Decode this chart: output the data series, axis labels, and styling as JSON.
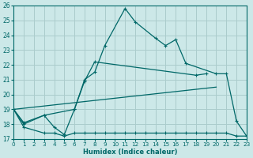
{
  "xlabel": "Humidex (Indice chaleur)",
  "background_color": "#cce8e8",
  "grid_color": "#aacccc",
  "line_color": "#006868",
  "xlim": [
    0,
    23
  ],
  "ylim": [
    17,
    26
  ],
  "xticks": [
    0,
    1,
    2,
    3,
    4,
    5,
    6,
    7,
    8,
    9,
    10,
    11,
    12,
    13,
    14,
    15,
    16,
    17,
    18,
    19,
    20,
    21,
    22,
    23
  ],
  "yticks": [
    17,
    18,
    19,
    20,
    21,
    22,
    23,
    24,
    25,
    26
  ],
  "series": [
    {
      "x": [
        0,
        1,
        3,
        4,
        5,
        6,
        7,
        8,
        9,
        11,
        12,
        14,
        15,
        16,
        17,
        20,
        21,
        22,
        23
      ],
      "y": [
        19,
        18,
        18.6,
        17.8,
        17.3,
        19.0,
        21.0,
        21.5,
        23.3,
        25.8,
        24.9,
        23.8,
        23.3,
        23.7,
        22.1,
        21.4,
        21.4,
        18.2,
        17.2
      ]
    },
    {
      "x": [
        0,
        1,
        3,
        6,
        7,
        8,
        18,
        19
      ],
      "y": [
        19,
        18.1,
        18.6,
        19.0,
        20.9,
        22.2,
        21.3,
        21.4
      ]
    },
    {
      "x": [
        0,
        20
      ],
      "y": [
        19,
        20.5
      ]
    },
    {
      "x": [
        0,
        1,
        3,
        4,
        5,
        6,
        7,
        8,
        9,
        10,
        11,
        12,
        13,
        14,
        15,
        16,
        17,
        18,
        19,
        20,
        21,
        22,
        23
      ],
      "y": [
        19,
        17.8,
        17.4,
        17.4,
        17.2,
        17.4,
        17.4,
        17.4,
        17.4,
        17.4,
        17.4,
        17.4,
        17.4,
        17.4,
        17.4,
        17.4,
        17.4,
        17.4,
        17.4,
        17.4,
        17.4,
        17.2,
        17.2
      ]
    }
  ]
}
